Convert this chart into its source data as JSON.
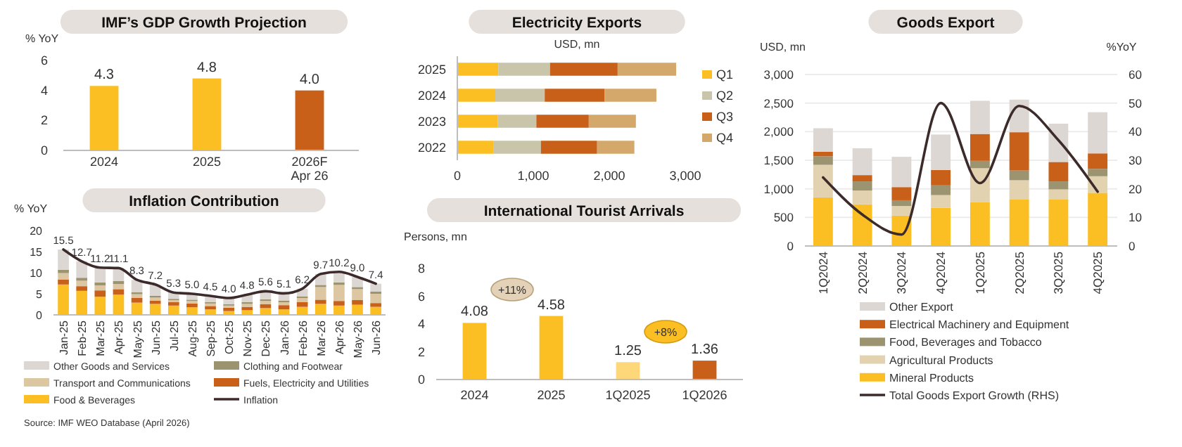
{
  "chart_data": [
    {
      "type": "bar",
      "title": "IMF’s GDP Growth Projection",
      "ylabel": "% YoY",
      "categories": [
        "2024",
        "2025",
        "2026F\nApr 26"
      ],
      "values": [
        4.3,
        4.8,
        4.0
      ],
      "colors": [
        "#fbbf24",
        "#fbbf24",
        "#c8601a"
      ],
      "value_labels": [
        "4.3",
        "4.8",
        "4.0"
      ],
      "ylim": [
        0,
        6
      ],
      "yticks": [
        0,
        2,
        4,
        6
      ]
    },
    {
      "type": "bar",
      "title": "Inflation Contribution",
      "ylabel": "% YoY",
      "stacked": true,
      "legend": "bottom",
      "categories": [
        "Jan-25",
        "Feb-25",
        "Mar-25",
        "Apr-25",
        "May-25",
        "Jun-25",
        "Jul-25",
        "Aug-25",
        "Sep-25",
        "Oct-25",
        "Nov-25",
        "Dec-25",
        "Jan-26",
        "Feb-26",
        "Mar-26",
        "Apr-26",
        "May-26",
        "Jun-26"
      ],
      "ylim": [
        0,
        20
      ],
      "yticks": [
        0,
        5,
        10,
        15,
        20
      ],
      "series": [
        {
          "name": "Food & Beverages",
          "color": "#fbbf24",
          "values": [
            7.2,
            5.7,
            4.3,
            4.8,
            2.9,
            2.6,
            2.2,
            1.8,
            1.3,
            0.9,
            1.1,
            1.6,
            1.3,
            1.9,
            2.6,
            2.2,
            2.4,
            1.9
          ]
        },
        {
          "name": "Fuels, Electricity and Utilities",
          "color": "#c8601a",
          "values": [
            1.2,
            1.1,
            1.5,
            1.3,
            1.1,
            0.8,
            0.8,
            0.9,
            0.8,
            0.8,
            0.8,
            0.9,
            1.0,
            1.1,
            1.0,
            1.1,
            1.1,
            0.9
          ]
        },
        {
          "name": "Transport and Communications",
          "color": "#dcc7a2",
          "values": [
            1.5,
            1.3,
            1.2,
            1.2,
            0.9,
            0.7,
            0.5,
            0.6,
            0.6,
            0.5,
            0.7,
            0.8,
            0.7,
            1.0,
            3.0,
            3.8,
            2.6,
            2.2
          ]
        },
        {
          "name": "Clothing and Footwear",
          "color": "#9c9470",
          "values": [
            0.8,
            0.7,
            0.7,
            0.7,
            0.5,
            0.4,
            0.3,
            0.3,
            0.3,
            0.3,
            0.4,
            0.4,
            0.4,
            0.4,
            0.5,
            0.6,
            0.5,
            0.5
          ]
        },
        {
          "name": "Other Goods and Services",
          "color": "#dcd7d3",
          "values": [
            4.8,
            3.9,
            3.5,
            3.1,
            2.9,
            2.7,
            1.5,
            1.4,
            1.5,
            1.5,
            1.8,
            1.9,
            1.7,
            1.8,
            2.6,
            2.5,
            2.4,
            1.9
          ]
        },
        {
          "name": "Inflation",
          "type": "line",
          "color": "#3d2b2b",
          "values": [
            15.5,
            12.7,
            11.2,
            11.1,
            8.3,
            7.2,
            5.3,
            5.0,
            4.5,
            4.0,
            4.8,
            5.6,
            5.1,
            6.2,
            9.7,
            10.2,
            9.0,
            7.4
          ],
          "value_labels": [
            "15.5",
            "12.7",
            "11.2",
            "11.1",
            "8.3",
            "7.2",
            "5.3",
            "5.0",
            "4.5",
            "4.0",
            "4.8",
            "5.6",
            "5.1",
            "6.2",
            "9.7",
            "10.2",
            "9.0",
            "7.4"
          ]
        }
      ],
      "annotations": [
        "Source: IMF WEO Database (April 2026)"
      ]
    },
    {
      "type": "bar",
      "title": "Electricity Exports",
      "subtitle": "USD, mn",
      "orientation": "horizontal",
      "stacked": true,
      "legend": "right",
      "categories": [
        "2025",
        "2024",
        "2023",
        "2022"
      ],
      "xlim": [
        0,
        3000
      ],
      "xticks": [
        0,
        {
          "value": 1000,
          "label": "1,000"
        },
        {
          "value": 2000,
          "label": "2,000"
        },
        {
          "value": 3000,
          "label": "3,000"
        }
      ],
      "series": [
        {
          "name": "Q1",
          "color": "#fbbf24",
          "values": [
            540,
            500,
            530,
            480
          ]
        },
        {
          "name": "Q2",
          "color": "#c9c5ab",
          "values": [
            680,
            650,
            510,
            620
          ]
        },
        {
          "name": "Q3",
          "color": "#c8601a",
          "values": [
            890,
            790,
            690,
            740
          ]
        },
        {
          "name": "Q4",
          "color": "#d4a86a",
          "values": [
            770,
            680,
            620,
            490
          ]
        }
      ]
    },
    {
      "type": "bar",
      "title": "International Tourist Arrivals",
      "ylabel": "Persons, mn",
      "categories": [
        "2024",
        "2025",
        "1Q2025",
        "1Q2026"
      ],
      "values": [
        4.08,
        4.58,
        1.25,
        1.36
      ],
      "colors": [
        "#fbbf24",
        "#fbbf24",
        "#fdd77a",
        "#c8601a"
      ],
      "value_labels": [
        "4.08",
        "4.58",
        "1.25",
        "1.36"
      ],
      "ylim": [
        0,
        8
      ],
      "yticks": [
        0,
        2,
        4,
        6,
        8
      ],
      "annotations": [
        "+11%",
        "+8%"
      ]
    },
    {
      "type": "bar",
      "title": "Goods Export",
      "ylabel": "USD, mn",
      "y2label": "%YoY",
      "stacked": true,
      "legend": "bottom",
      "grid": "y",
      "categories": [
        "1Q2024",
        "2Q2024",
        "3Q2024",
        "4Q2024",
        "1Q2025",
        "2Q2025",
        "3Q2025",
        "4Q2025"
      ],
      "ylim": [
        0,
        3000
      ],
      "yticks": [
        0,
        500,
        {
          "value": 1000,
          "label": "1,000"
        },
        {
          "value": 1500,
          "label": "1,500"
        },
        {
          "value": 2000,
          "label": "2,000"
        },
        {
          "value": 2500,
          "label": "2,500"
        },
        {
          "value": 3000,
          "label": "3,000"
        }
      ],
      "y2lim": [
        0,
        60
      ],
      "y2ticks": [
        0,
        10,
        20,
        30,
        40,
        50,
        60
      ],
      "series": [
        {
          "name": "Mineral Products",
          "color": "#fbbf24",
          "values": [
            850,
            730,
            530,
            670,
            770,
            820,
            820,
            930
          ]
        },
        {
          "name": "Agricultural Products",
          "color": "#e3d2b0",
          "values": [
            570,
            240,
            170,
            220,
            590,
            330,
            170,
            290
          ]
        },
        {
          "name": "Food, Beverages and Tobacco",
          "color": "#9c9470",
          "values": [
            150,
            160,
            100,
            170,
            130,
            170,
            140,
            130
          ]
        },
        {
          "name": "Electrical Machinery and Equipment",
          "color": "#c8601a",
          "values": [
            80,
            110,
            230,
            270,
            470,
            670,
            340,
            270
          ]
        },
        {
          "name": "Other Export",
          "color": "#dcd7d3",
          "values": [
            410,
            470,
            530,
            620,
            580,
            570,
            670,
            720
          ]
        },
        {
          "name": "Total Goods Export Growth (RHS)",
          "type": "line",
          "axis": "y2",
          "color": "#3d2b2b",
          "values": [
            24,
            11,
            4,
            50,
            22,
            49,
            37,
            19
          ]
        }
      ]
    }
  ]
}
